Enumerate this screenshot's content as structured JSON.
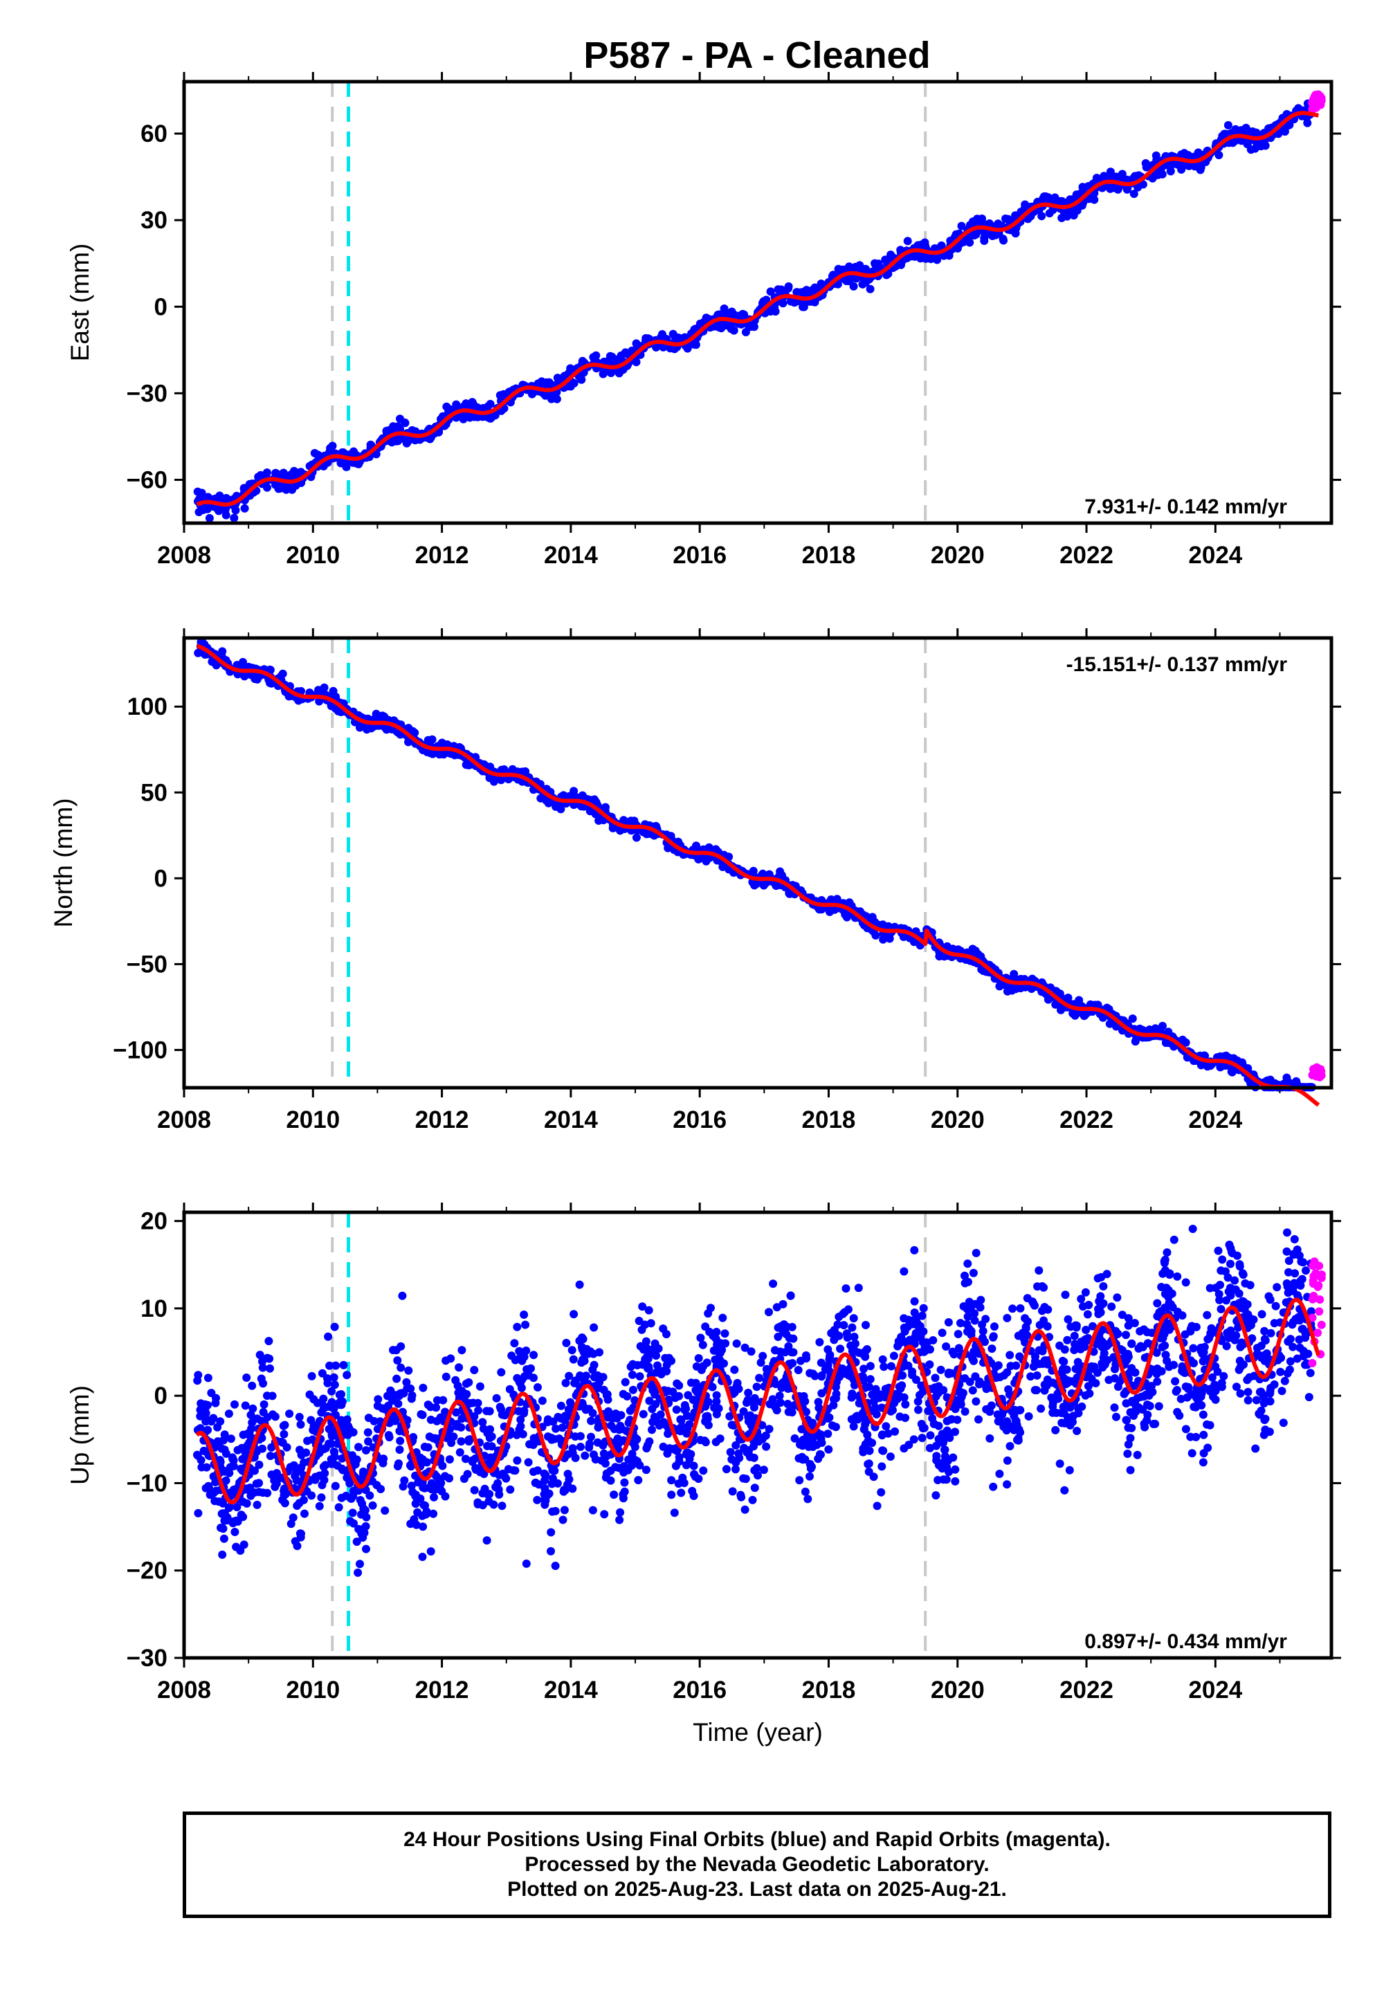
{
  "title": "P587  - PA - Cleaned",
  "colors": {
    "final_orbits": "#0000ff",
    "rapid_orbits": "#ff00ff",
    "model": "#ff0000",
    "offset_line": "#c8c8c8",
    "equipment_line": "#00e5ee"
  },
  "footnote": {
    "line1": "24 Hour Positions Using Final Orbits (blue) and Rapid Orbits (magenta).",
    "line2": "Processed by the Nevada Geodetic Laboratory.",
    "line3": "Plotted on 2025-Aug-23. Last data on 2025-Aug-21."
  },
  "chart_data": [
    {
      "type": "scatter",
      "component": "East",
      "ylabel": "East (mm)",
      "xlabel": "",
      "xlim": [
        2008,
        2025.8
      ],
      "ylim": [
        -75,
        78
      ],
      "xticks": [
        "2008",
        "2010",
        "2012",
        "2014",
        "2016",
        "2018",
        "2020",
        "2022",
        "2024"
      ],
      "yticks": [
        "−60",
        "−30",
        "0",
        "30",
        "60"
      ],
      "yticks_values": [
        -60,
        -30,
        0,
        30,
        60
      ],
      "rate_label": "7.931+/- 0.142 mm/yr",
      "rate_position": "bottom-right",
      "offset_lines": [
        2010.3,
        2019.5
      ],
      "equipment_lines": [
        2010.55
      ],
      "model": {
        "start_year": 2008.2,
        "start_value": -70.5,
        "rate": 7.931,
        "annual_amplitude": 2.0,
        "scatter": 1.6,
        "step_2019_5": 0
      },
      "rapid_range": [
        2025.5,
        2025.65
      ],
      "rapid_values": [
        68,
        74
      ]
    },
    {
      "type": "scatter",
      "component": "North",
      "ylabel": "North (mm)",
      "xlabel": "",
      "xlim": [
        2008,
        2025.8
      ],
      "ylim": [
        -122,
        140
      ],
      "xticks": [
        "2008",
        "2010",
        "2012",
        "2014",
        "2016",
        "2018",
        "2020",
        "2022",
        "2024"
      ],
      "yticks": [
        "−100",
        "−50",
        "0",
        "50",
        "100"
      ],
      "yticks_values": [
        -100,
        -50,
        0,
        50,
        100
      ],
      "rate_label": "-15.151+/- 0.137 mm/yr",
      "rate_position": "top-right",
      "offset_lines": [
        2010.3,
        2019.5
      ],
      "equipment_lines": [
        2010.55
      ],
      "model": {
        "start_year": 2008.2,
        "start_value": 133,
        "rate": -15.151,
        "annual_amplitude": 2.5,
        "scatter": 2.0,
        "step_2019_5": 9
      },
      "rapid_range": [
        2025.5,
        2025.65
      ],
      "rapid_values": [
        -116,
        -110
      ]
    },
    {
      "type": "scatter",
      "component": "Up",
      "ylabel": "Up (mm)",
      "xlabel": "Time (year)",
      "xlim": [
        2008,
        2025.8
      ],
      "ylim": [
        -30,
        21
      ],
      "xticks": [
        "2008",
        "2010",
        "2012",
        "2014",
        "2016",
        "2018",
        "2020",
        "2022",
        "2024"
      ],
      "yticks": [
        "−30",
        "−20",
        "−10",
        "0",
        "10",
        "20"
      ],
      "yticks_values": [
        -30,
        -20,
        -10,
        0,
        10,
        20
      ],
      "rate_label": "0.897+/- 0.434 mm/yr",
      "rate_position": "bottom-right",
      "offset_lines": [
        2010.3,
        2019.5
      ],
      "equipment_lines": [
        2010.55
      ],
      "model": {
        "start_year": 2008.2,
        "start_value": -8.5,
        "rate": 0.897,
        "annual_amplitude": 4.2,
        "scatter": 4.0,
        "step_2019_5": 0
      },
      "rapid_range": [
        2025.5,
        2025.65
      ],
      "rapid_values": [
        2,
        18
      ]
    }
  ]
}
